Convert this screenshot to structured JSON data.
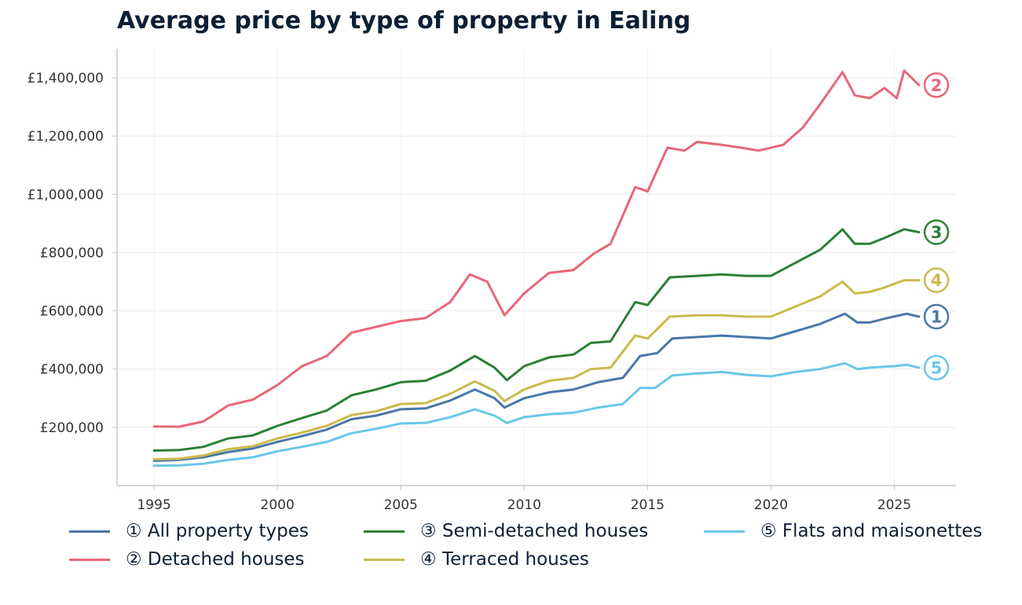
{
  "chart_data": {
    "type": "line",
    "title": "Average price by type of property in Ealing",
    "xlabel": "",
    "ylabel": "",
    "xlim": [
      1993.5,
      2027.5
    ],
    "ylim": [
      0,
      1500000
    ],
    "x_ticks": [
      1995,
      2000,
      2005,
      2010,
      2015,
      2020,
      2025
    ],
    "x_tick_labels": [
      "1995",
      "2000",
      "2005",
      "2010",
      "2015",
      "2020",
      "2025"
    ],
    "y_ticks": [
      200000,
      400000,
      600000,
      800000,
      1000000,
      1200000,
      1400000
    ],
    "y_tick_labels": [
      "£200,000",
      "£400,000",
      "£600,000",
      "£800,000",
      "£1,000,000",
      "£1,200,000",
      "£1,400,000"
    ],
    "grid": true,
    "legend_position": "bottom",
    "series": [
      {
        "name": "① All property types",
        "badge": "1",
        "color": "#4a77a8",
        "points": [
          [
            1995,
            85000
          ],
          [
            1996,
            88000
          ],
          [
            1997,
            97000
          ],
          [
            1998,
            115000
          ],
          [
            1999,
            127000
          ],
          [
            2000,
            150000
          ],
          [
            2001,
            170000
          ],
          [
            2002,
            192000
          ],
          [
            2003,
            228000
          ],
          [
            2004,
            240000
          ],
          [
            2005,
            262000
          ],
          [
            2006,
            265000
          ],
          [
            2007,
            292000
          ],
          [
            2008,
            330000
          ],
          [
            2008.8,
            300000
          ],
          [
            2009.2,
            268000
          ],
          [
            2010,
            300000
          ],
          [
            2011,
            320000
          ],
          [
            2012,
            330000
          ],
          [
            2013,
            355000
          ],
          [
            2014,
            370000
          ],
          [
            2014.7,
            445000
          ],
          [
            2015.4,
            455000
          ],
          [
            2016,
            505000
          ],
          [
            2017,
            510000
          ],
          [
            2018,
            515000
          ],
          [
            2019,
            510000
          ],
          [
            2020,
            505000
          ],
          [
            2021,
            530000
          ],
          [
            2022,
            555000
          ],
          [
            2023,
            590000
          ],
          [
            2023.5,
            560000
          ],
          [
            2024,
            560000
          ],
          [
            2024.7,
            575000
          ],
          [
            2025.5,
            590000
          ],
          [
            2026,
            580000
          ]
        ]
      },
      {
        "name": "② Detached houses",
        "badge": "2",
        "color": "#e8667a",
        "points": [
          [
            1995,
            203000
          ],
          [
            1996,
            202000
          ],
          [
            1997,
            220000
          ],
          [
            1998,
            275000
          ],
          [
            1999,
            295000
          ],
          [
            2000,
            345000
          ],
          [
            2001,
            410000
          ],
          [
            2002,
            445000
          ],
          [
            2003,
            525000
          ],
          [
            2004,
            545000
          ],
          [
            2005,
            565000
          ],
          [
            2006,
            575000
          ],
          [
            2007,
            630000
          ],
          [
            2007.8,
            725000
          ],
          [
            2008.5,
            700000
          ],
          [
            2009.2,
            585000
          ],
          [
            2010,
            660000
          ],
          [
            2011,
            730000
          ],
          [
            2012,
            740000
          ],
          [
            2012.8,
            795000
          ],
          [
            2013.5,
            830000
          ],
          [
            2014.5,
            1025000
          ],
          [
            2015,
            1010000
          ],
          [
            2015.8,
            1160000
          ],
          [
            2016.5,
            1150000
          ],
          [
            2017,
            1180000
          ],
          [
            2018,
            1170000
          ],
          [
            2018.8,
            1160000
          ],
          [
            2019.5,
            1150000
          ],
          [
            2020.5,
            1170000
          ],
          [
            2021.3,
            1230000
          ],
          [
            2022,
            1310000
          ],
          [
            2022.9,
            1420000
          ],
          [
            2023.4,
            1340000
          ],
          [
            2024,
            1330000
          ],
          [
            2024.6,
            1365000
          ],
          [
            2025.1,
            1330000
          ],
          [
            2025.4,
            1425000
          ],
          [
            2026,
            1375000
          ]
        ]
      },
      {
        "name": "③ Semi-detached houses",
        "badge": "3",
        "color": "#2b8035",
        "points": [
          [
            1995,
            120000
          ],
          [
            1996,
            122000
          ],
          [
            1997,
            133000
          ],
          [
            1998,
            162000
          ],
          [
            1999,
            172000
          ],
          [
            2000,
            205000
          ],
          [
            2001,
            232000
          ],
          [
            2002,
            258000
          ],
          [
            2003,
            310000
          ],
          [
            2004,
            330000
          ],
          [
            2005,
            355000
          ],
          [
            2006,
            360000
          ],
          [
            2007,
            395000
          ],
          [
            2008,
            445000
          ],
          [
            2008.8,
            405000
          ],
          [
            2009.3,
            362000
          ],
          [
            2010,
            410000
          ],
          [
            2011,
            440000
          ],
          [
            2012,
            450000
          ],
          [
            2012.7,
            490000
          ],
          [
            2013.5,
            495000
          ],
          [
            2014.5,
            630000
          ],
          [
            2015,
            620000
          ],
          [
            2015.9,
            715000
          ],
          [
            2017,
            720000
          ],
          [
            2018,
            725000
          ],
          [
            2019,
            720000
          ],
          [
            2020,
            720000
          ],
          [
            2021,
            765000
          ],
          [
            2022,
            810000
          ],
          [
            2022.9,
            880000
          ],
          [
            2023.4,
            830000
          ],
          [
            2024,
            830000
          ],
          [
            2024.6,
            850000
          ],
          [
            2025.4,
            880000
          ],
          [
            2026,
            870000
          ]
        ]
      },
      {
        "name": "④ Terraced houses",
        "badge": "4",
        "color": "#c9bb4c",
        "points": [
          [
            1995,
            90000
          ],
          [
            1996,
            92000
          ],
          [
            1997,
            103000
          ],
          [
            1998,
            125000
          ],
          [
            1999,
            135000
          ],
          [
            2000,
            162000
          ],
          [
            2001,
            182000
          ],
          [
            2002,
            205000
          ],
          [
            2003,
            242000
          ],
          [
            2004,
            255000
          ],
          [
            2005,
            280000
          ],
          [
            2006,
            283000
          ],
          [
            2007,
            315000
          ],
          [
            2008,
            358000
          ],
          [
            2008.8,
            325000
          ],
          [
            2009.2,
            290000
          ],
          [
            2010,
            330000
          ],
          [
            2011,
            360000
          ],
          [
            2012,
            370000
          ],
          [
            2012.7,
            400000
          ],
          [
            2013.5,
            405000
          ],
          [
            2014.5,
            515000
          ],
          [
            2015,
            505000
          ],
          [
            2015.9,
            580000
          ],
          [
            2017,
            585000
          ],
          [
            2018,
            585000
          ],
          [
            2019,
            580000
          ],
          [
            2020,
            580000
          ],
          [
            2021,
            615000
          ],
          [
            2022,
            650000
          ],
          [
            2022.9,
            700000
          ],
          [
            2023.4,
            660000
          ],
          [
            2024,
            665000
          ],
          [
            2024.6,
            680000
          ],
          [
            2025.4,
            705000
          ],
          [
            2026,
            705000
          ]
        ]
      },
      {
        "name": "⑤ Flats and maisonettes",
        "badge": "5",
        "color": "#69c7e8",
        "points": [
          [
            1995,
            68000
          ],
          [
            1996,
            69000
          ],
          [
            1997,
            75000
          ],
          [
            1998,
            88000
          ],
          [
            1999,
            97000
          ],
          [
            2000,
            118000
          ],
          [
            2001,
            133000
          ],
          [
            2002,
            150000
          ],
          [
            2003,
            180000
          ],
          [
            2004,
            195000
          ],
          [
            2005,
            213000
          ],
          [
            2006,
            215000
          ],
          [
            2007,
            235000
          ],
          [
            2008,
            262000
          ],
          [
            2008.8,
            240000
          ],
          [
            2009.3,
            215000
          ],
          [
            2010,
            235000
          ],
          [
            2011,
            245000
          ],
          [
            2012,
            250000
          ],
          [
            2013,
            268000
          ],
          [
            2014,
            280000
          ],
          [
            2014.7,
            335000
          ],
          [
            2015.3,
            335000
          ],
          [
            2016,
            378000
          ],
          [
            2017,
            385000
          ],
          [
            2018,
            390000
          ],
          [
            2019,
            380000
          ],
          [
            2020,
            375000
          ],
          [
            2021,
            390000
          ],
          [
            2022,
            400000
          ],
          [
            2023,
            420000
          ],
          [
            2023.5,
            400000
          ],
          [
            2024,
            405000
          ],
          [
            2025,
            410000
          ],
          [
            2025.5,
            415000
          ],
          [
            2026,
            405000
          ]
        ]
      }
    ]
  }
}
